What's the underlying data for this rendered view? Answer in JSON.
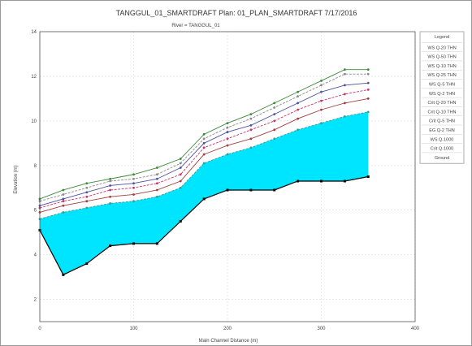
{
  "chart_data": {
    "type": "line",
    "title": "TANGGUL_01_SMARTDRAFT     Plan: 01_PLAN_SMARTDRAFT     7/17/2016",
    "subtitle": "River = TANGGUL_01",
    "xlabel": "Main Channel Distance (m)",
    "ylabel": "Elevation (m)",
    "xlim": [
      0,
      400
    ],
    "ylim": [
      1,
      14
    ],
    "x_ticks": [
      0,
      100,
      200,
      300,
      400
    ],
    "y_ticks": [
      2,
      4,
      6,
      8,
      10,
      12,
      14
    ],
    "x_tick_labels": [
      "0",
      "100",
      "200",
      "300",
      "400"
    ],
    "y_tick_labels": [
      "2",
      "4",
      "6",
      "8",
      "10",
      "12",
      "14"
    ],
    "x": [
      0,
      25,
      50,
      75,
      100,
      125,
      150,
      175,
      200,
      225,
      250,
      275,
      300,
      325,
      350
    ],
    "ground": [
      5.1,
      3.1,
      3.6,
      4.4,
      4.5,
      4.5,
      5.5,
      6.5,
      6.9,
      6.9,
      6.9,
      7.3,
      7.3,
      7.3,
      7.5
    ],
    "series": [
      {
        "name": "WS Q-20 THN",
        "color": "#3a8a3a",
        "values": [
          6.5,
          6.9,
          7.2,
          7.4,
          7.6,
          7.9,
          8.3,
          9.4,
          9.9,
          10.3,
          10.8,
          11.3,
          11.8,
          12.3,
          12.3
        ]
      },
      {
        "name": "WS Q-50 THN",
        "color": "#8a8a8a",
        "values": [
          6.4,
          6.7,
          7.0,
          7.3,
          7.4,
          7.6,
          8.1,
          9.2,
          9.7,
          10.1,
          10.6,
          11.1,
          11.6,
          12.1,
          12.1
        ]
      },
      {
        "name": "WS Q-10 THN",
        "color": "#5050a0",
        "values": [
          6.2,
          6.5,
          6.8,
          7.1,
          7.2,
          7.4,
          7.9,
          9.0,
          9.5,
          9.8,
          10.3,
          10.8,
          11.3,
          11.6,
          11.7
        ]
      },
      {
        "name": "WS Q-25 THN",
        "color": "#cc3366",
        "values": [
          6.1,
          6.4,
          6.6,
          6.9,
          7.0,
          7.2,
          7.6,
          8.8,
          9.2,
          9.6,
          10.0,
          10.5,
          10.9,
          11.2,
          11.4
        ]
      },
      {
        "name": "WS Q-5 THN",
        "color": "#a04040",
        "values": [
          5.9,
          6.2,
          6.4,
          6.6,
          6.7,
          6.9,
          7.3,
          8.5,
          8.9,
          9.2,
          9.6,
          10.1,
          10.5,
          10.8,
          11.0
        ]
      },
      {
        "name": "WS Q-2 THN",
        "color": "#30a0a0",
        "values": [
          5.6,
          5.9,
          6.1,
          6.3,
          6.4,
          6.6,
          7.0,
          8.1,
          8.5,
          8.8,
          9.2,
          9.6,
          9.9,
          10.2,
          10.4
        ]
      }
    ],
    "legend": {
      "title": "Legend",
      "items": [
        "WS Q-20 THN",
        "WS Q-50 THN",
        "WS Q-10 THN",
        "WS Q-25 THN",
        "WS Q-5 THN",
        "WS Q-2 THN",
        "Crit Q-20 THN",
        "Crit Q-10 THN",
        "Crit Q-5 THN",
        "EG Q-2 THN",
        "WS Q-1000",
        "Crit Q-1000",
        "Ground"
      ],
      "placement": "right"
    },
    "fill_color": "#00e5ff",
    "grid": true
  }
}
